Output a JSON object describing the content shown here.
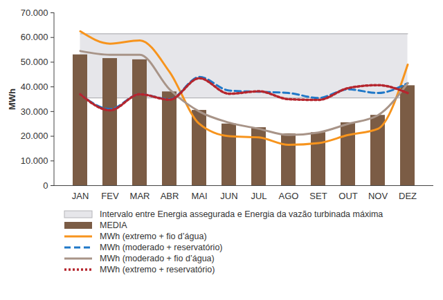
{
  "chart_data": {
    "type": "bar",
    "y_label": "MWh",
    "categories": [
      "JAN",
      "FEV",
      "MAR",
      "ABR",
      "MAI",
      "JUN",
      "JUL",
      "AGO",
      "SET",
      "OUT",
      "NOV",
      "DEZ"
    ],
    "ylim": [
      0,
      70000
    ],
    "yticks": [
      0,
      {
        "value": 10000,
        "label": "10.000"
      },
      {
        "value": 20000,
        "label": "20.000"
      },
      {
        "value": 30000,
        "label": "30.000"
      },
      {
        "value": 40000,
        "label": "40.000"
      },
      {
        "value": 50000,
        "label": "50.000"
      },
      {
        "value": 60000,
        "label": "60.000"
      },
      {
        "value": 70000,
        "label": "70.000"
      }
    ],
    "grid": false,
    "band": {
      "name": "Intervalo entre Energia assegurada e Energia da vazão turbinada máxima",
      "color": "#e6e6ea",
      "low": 35500,
      "high": 61500
    },
    "series": [
      {
        "name": "MEDIA",
        "type": "bar",
        "color": "#7b5c45",
        "values": [
          53000,
          51500,
          51000,
          38000,
          30500,
          25000,
          23500,
          21000,
          21500,
          25500,
          28500,
          40500
        ]
      },
      {
        "name": "MWh (extremo + fio d’água)",
        "type": "line",
        "color": "#f7941d",
        "line_style": "solid",
        "values": [
          62500,
          57500,
          58800,
          46000,
          25000,
          20000,
          19500,
          16500,
          17200,
          20500,
          23000,
          49000
        ]
      },
      {
        "name": "MWh (moderado + reservatório)",
        "type": "line",
        "color": "#1f78c8",
        "line_style": "dashed",
        "values": [
          37000,
          31000,
          37000,
          35000,
          44000,
          38500,
          38000,
          37500,
          35500,
          39000,
          37500,
          41500
        ]
      },
      {
        "name": "MWh (moderado + fio d’água)",
        "type": "line",
        "color": "#a89488",
        "line_style": "solid",
        "values": [
          54500,
          53000,
          53000,
          39000,
          30000,
          25500,
          23000,
          20500,
          21500,
          25000,
          28500,
          41500
        ]
      },
      {
        "name": "MWh (extremo + reservatório)",
        "type": "line",
        "color": "#b5262e",
        "line_style": "dotted",
        "values": [
          37000,
          30500,
          37000,
          34800,
          43500,
          37200,
          38200,
          35000,
          34700,
          39500,
          40700,
          37500
        ]
      }
    ]
  }
}
